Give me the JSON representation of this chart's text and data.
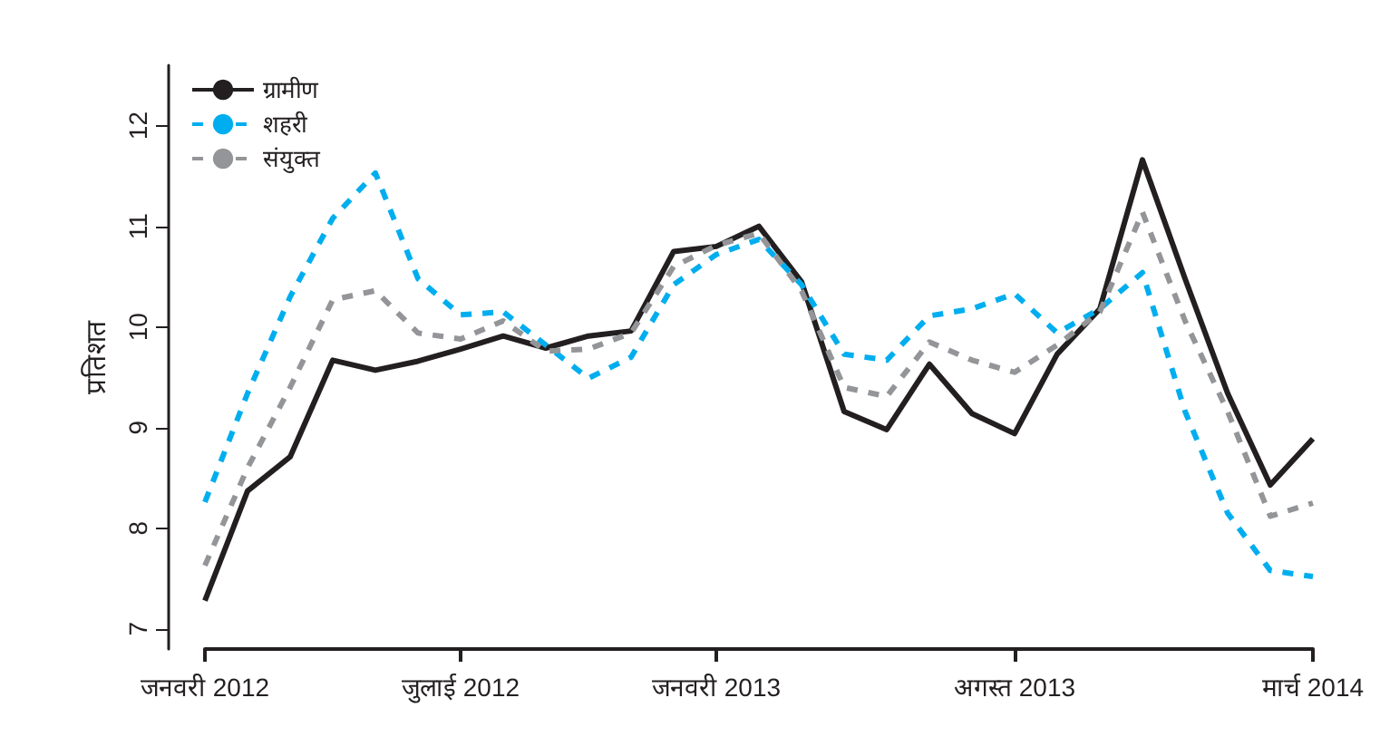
{
  "chart_data": {
    "type": "line",
    "ylabel": "प्रतिशत",
    "categories": [
      "जनवरी 2012",
      null,
      null,
      null,
      null,
      null,
      "जुलाई 2012",
      null,
      null,
      null,
      null,
      null,
      "जनवरी 2013",
      null,
      null,
      null,
      null,
      null,
      null,
      "अगस्त 2013",
      null,
      null,
      null,
      null,
      null,
      null,
      "मार्च 2014"
    ],
    "series": [
      {
        "name": "ग्रामीण",
        "color": "#231f20",
        "line_style": "solid",
        "values": [
          7.28,
          8.37,
          8.71,
          9.67,
          9.57,
          9.66,
          9.78,
          9.91,
          9.79,
          9.91,
          9.96,
          10.75,
          10.8,
          11.0,
          10.45,
          9.16,
          8.98,
          9.63,
          9.14,
          8.94,
          9.73,
          10.18,
          11.66,
          10.48,
          9.34,
          8.43,
          8.89
        ]
      },
      {
        "name": "शहरी",
        "color": "#00aeef",
        "line_style": "dashed",
        "values": [
          8.26,
          9.34,
          10.3,
          11.08,
          11.53,
          10.48,
          10.12,
          10.15,
          9.82,
          9.49,
          9.7,
          10.42,
          10.72,
          10.87,
          10.42,
          9.73,
          9.67,
          10.11,
          10.18,
          10.33,
          9.94,
          10.18,
          10.54,
          9.16,
          8.15,
          7.58,
          7.52
        ]
      },
      {
        "name": "संयुक्त",
        "color": "#939598",
        "line_style": "dashed",
        "values": [
          7.63,
          8.6,
          9.4,
          10.27,
          10.36,
          9.94,
          9.88,
          10.06,
          9.76,
          9.78,
          9.94,
          10.6,
          10.81,
          10.93,
          10.36,
          9.4,
          9.31,
          9.85,
          9.67,
          9.55,
          9.82,
          10.15,
          11.14,
          10.06,
          9.16,
          8.12,
          8.25
        ]
      }
    ],
    "ylim": [
      6.8,
      12.6
    ],
    "yticks": [
      7,
      8,
      9,
      10,
      11,
      12
    ],
    "grid": false,
    "legend": "top left",
    "marker": "none"
  }
}
